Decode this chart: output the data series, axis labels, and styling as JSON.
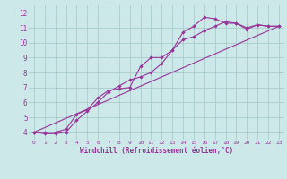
{
  "bg_color": "#cce8e8",
  "grid_color": "#aacccc",
  "line_color": "#993399",
  "marker_color": "#993399",
  "xlabel": "Windchill (Refroidissement éolien,°C)",
  "xlabel_color": "#993399",
  "xlim": [
    -0.5,
    23.5
  ],
  "ylim": [
    3.5,
    12.5
  ],
  "yticks": [
    4,
    5,
    6,
    7,
    8,
    9,
    10,
    11,
    12
  ],
  "xticks": [
    0,
    1,
    2,
    3,
    4,
    5,
    6,
    7,
    8,
    9,
    10,
    11,
    12,
    13,
    14,
    15,
    16,
    17,
    18,
    19,
    20,
    21,
    22,
    23
  ],
  "line1_x": [
    0,
    1,
    2,
    3,
    4,
    5,
    6,
    7,
    8,
    9,
    10,
    11,
    12,
    13,
    14,
    15,
    16,
    17,
    18,
    19,
    20,
    21,
    22,
    23
  ],
  "line1_y": [
    4.0,
    4.0,
    4.0,
    4.2,
    5.2,
    5.5,
    6.3,
    6.8,
    6.9,
    7.0,
    8.4,
    9.0,
    9.0,
    9.5,
    10.7,
    11.1,
    11.7,
    11.6,
    11.3,
    11.3,
    10.9,
    11.2,
    11.1,
    11.1
  ],
  "line2_x": [
    0,
    1,
    2,
    3,
    4,
    5,
    6,
    7,
    8,
    9,
    10,
    11,
    12,
    13,
    14,
    15,
    16,
    17,
    18,
    19,
    20,
    21,
    22,
    23
  ],
  "line2_y": [
    4.0,
    3.9,
    3.9,
    4.0,
    4.8,
    5.4,
    6.0,
    6.7,
    7.1,
    7.5,
    7.7,
    8.0,
    8.6,
    9.5,
    10.2,
    10.4,
    10.8,
    11.1,
    11.4,
    11.3,
    11.0,
    11.2,
    11.1,
    11.1
  ],
  "line3_x": [
    0,
    23
  ],
  "line3_y": [
    4.0,
    11.1
  ]
}
